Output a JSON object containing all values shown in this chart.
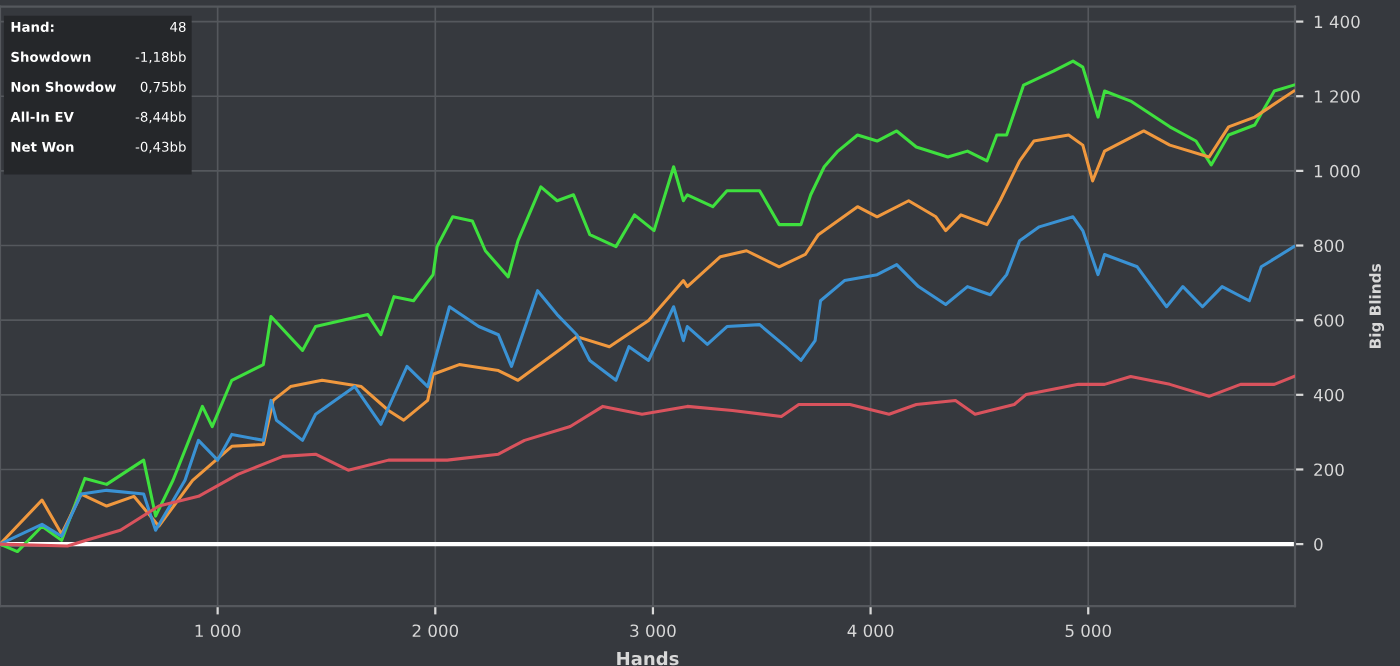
{
  "chart_data": {
    "type": "line",
    "xlabel": "Hands",
    "ylabel": "Big Blinds",
    "xlim": [
      0,
      5950
    ],
    "ylim": [
      -166,
      1440
    ],
    "xticks": [
      {
        "value": 1000,
        "label": "1 000"
      },
      {
        "value": 2000,
        "label": "2 000"
      },
      {
        "value": 3000,
        "label": "3 000"
      },
      {
        "value": 4000,
        "label": "4 000"
      },
      {
        "value": 5000,
        "label": "5 000"
      }
    ],
    "yticks": [
      0,
      200,
      400,
      600,
      800,
      {
        "value": 1000,
        "label": "1 000"
      },
      {
        "value": 1200,
        "label": "1 200"
      },
      {
        "value": 1400,
        "label": "1 400"
      }
    ],
    "grid": true,
    "marker": "none",
    "line_style": "solid",
    "ref_lines": [
      {
        "axis": "y",
        "value": 0,
        "color": "#ffffff"
      }
    ],
    "annotations": [
      "Hand:",
      "48",
      "Showdown",
      "-1,18bb",
      "Non Showdow",
      "0,75bb",
      "All-In EV",
      "-8,44bb",
      "Net Won",
      "-0,43bb"
    ],
    "series": [
      {
        "color": "#3ee03e",
        "x": [
          0,
          80,
          193,
          283,
          390,
          490,
          660,
          715,
          795,
          930,
          975,
          1065,
          1210,
          1245,
          1390,
          1450,
          1690,
          1750,
          1810,
          1900,
          1990,
          2008,
          2080,
          2170,
          2230,
          2335,
          2380,
          2485,
          2560,
          2635,
          2710,
          2830,
          2915,
          3005,
          3095,
          3140,
          3158,
          3275,
          3340,
          3490,
          3580,
          3680,
          3725,
          3787,
          3850,
          3940,
          4030,
          4120,
          4210,
          4355,
          4445,
          4535,
          4580,
          4625,
          4703,
          4840,
          4930,
          4975,
          5045,
          5075,
          5195,
          5375,
          5495,
          5565,
          5645,
          5765,
          5855,
          5945
        ],
        "values": [
          0,
          -20,
          48,
          10,
          176,
          160,
          225,
          75,
          171,
          369,
          315,
          439,
          481,
          610,
          519,
          583,
          615,
          561,
          663,
          652,
          722,
          797,
          877,
          866,
          786,
          716,
          813,
          957,
          920,
          936,
          829,
          797,
          882,
          840,
          1011,
          920,
          936,
          904,
          947,
          947,
          856,
          856,
          936,
          1011,
          1053,
          1096,
          1080,
          1107,
          1064,
          1037,
          1053,
          1027,
          1096,
          1096,
          1230,
          1267,
          1294,
          1278,
          1144,
          1214,
          1187,
          1118,
          1080,
          1016,
          1096,
          1123,
          1214,
          1230
        ]
      },
      {
        "color": "#f0983e",
        "x": [
          0,
          193,
          283,
          373,
          490,
          615,
          730,
          885,
          1065,
          1210,
          1255,
          1335,
          1480,
          1660,
          1785,
          1855,
          1965,
          1990,
          2110,
          2290,
          2380,
          2590,
          2650,
          2800,
          2980,
          3140,
          3158,
          3310,
          3430,
          3580,
          3700,
          3760,
          3940,
          4030,
          4175,
          4300,
          4345,
          4415,
          4535,
          4595,
          4685,
          4750,
          4910,
          4975,
          5020,
          5075,
          5255,
          5375,
          5555,
          5645,
          5765,
          5945
        ],
        "values": [
          0,
          118,
          27,
          134,
          102,
          128,
          48,
          171,
          262,
          267,
          385,
          422,
          439,
          422,
          358,
          332,
          385,
          455,
          481,
          465,
          439,
          529,
          556,
          529,
          599,
          706,
          690,
          770,
          786,
          743,
          776,
          829,
          904,
          877,
          920,
          877,
          840,
          882,
          856,
          920,
          1027,
          1080,
          1096,
          1069,
          973,
          1053,
          1107,
          1069,
          1037,
          1118,
          1144,
          1214
        ]
      },
      {
        "color": "#3a92d4",
        "x": [
          0,
          193,
          283,
          373,
          490,
          660,
          715,
          850,
          912,
          1000,
          1065,
          1210,
          1245,
          1270,
          1390,
          1450,
          1630,
          1750,
          1870,
          1965,
          2065,
          2200,
          2290,
          2350,
          2470,
          2560,
          2650,
          2710,
          2830,
          2890,
          2980,
          3095,
          3140,
          3158,
          3250,
          3340,
          3490,
          3610,
          3680,
          3745,
          3770,
          3880,
          4030,
          4120,
          4220,
          4345,
          4445,
          4550,
          4625,
          4685,
          4775,
          4930,
          4975,
          5045,
          5075,
          5225,
          5360,
          5435,
          5525,
          5615,
          5740,
          5795,
          5945
        ],
        "values": [
          0,
          53,
          21,
          134,
          144,
          134,
          37,
          171,
          278,
          225,
          294,
          278,
          385,
          332,
          278,
          348,
          422,
          321,
          476,
          422,
          636,
          583,
          561,
          476,
          679,
          615,
          561,
          492,
          439,
          529,
          492,
          636,
          545,
          583,
          535,
          583,
          588,
          529,
          492,
          545,
          652,
          706,
          722,
          749,
          690,
          642,
          690,
          668,
          722,
          813,
          850,
          877,
          840,
          722,
          776,
          743,
          636,
          690,
          636,
          690,
          652,
          743,
          797
        ]
      },
      {
        "color": "#d9535d",
        "x": [
          0,
          310,
          400,
          553,
          730,
          912,
          1093,
          1300,
          1450,
          1600,
          1785,
          2055,
          2290,
          2410,
          2620,
          2770,
          2950,
          3158,
          3365,
          3590,
          3670,
          3905,
          4085,
          4210,
          4390,
          4480,
          4660,
          4715,
          4955,
          5075,
          5195,
          5375,
          5555,
          5700,
          5855,
          5945
        ],
        "values": [
          0,
          -5,
          11,
          37,
          102,
          128,
          187,
          235,
          241,
          198,
          225,
          225,
          241,
          278,
          315,
          369,
          348,
          369,
          358,
          342,
          374,
          374,
          348,
          374,
          385,
          348,
          374,
          401,
          428,
          428,
          449,
          428,
          396,
          428,
          428,
          449
        ]
      }
    ]
  }
}
